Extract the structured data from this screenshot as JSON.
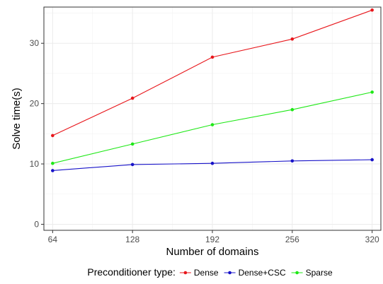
{
  "chart_data": {
    "type": "line",
    "xlabel": "Number of domains",
    "ylabel": "Solve time(s)",
    "x": [
      64,
      128,
      192,
      256,
      320
    ],
    "xlim": [
      57,
      327
    ],
    "ylim": [
      -1,
      36
    ],
    "x_ticks": [
      "64",
      "128",
      "192",
      "256",
      "320"
    ],
    "y_ticks": [
      "0",
      "10",
      "20",
      "30"
    ],
    "grid": true,
    "legend": {
      "title": "Preconditioner type:",
      "placement": "bottom"
    },
    "series": [
      {
        "name": "Dense",
        "color": "#e8161b",
        "values": [
          14.7,
          20.9,
          27.7,
          30.7,
          35.5
        ]
      },
      {
        "name": "Dense+CSC",
        "color": "#1712c8",
        "values": [
          8.9,
          9.9,
          10.1,
          10.5,
          10.7
        ]
      },
      {
        "name": "Sparse",
        "color": "#1ee816",
        "values": [
          10.1,
          13.3,
          16.5,
          19.0,
          21.9
        ]
      }
    ]
  }
}
